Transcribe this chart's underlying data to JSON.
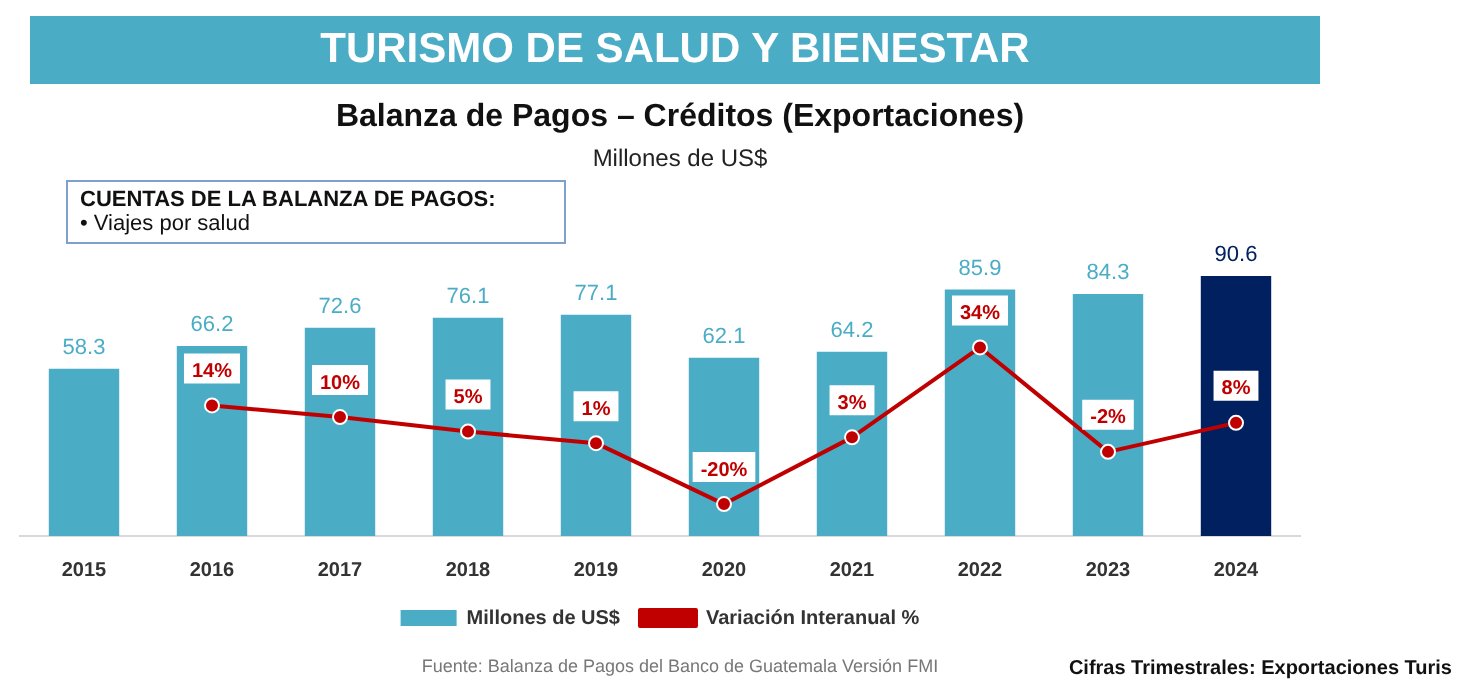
{
  "chart_data": {
    "type": "bar",
    "title": "TURISMO DE SALUD Y BIENESTAR",
    "subtitle": "Balanza de Pagos – Créditos (Exportaciones)",
    "annotations": [
      "Millones de US$",
      "CUENTAS DE LA BALANZA DE PAGOS:",
      "• Viajes por salud",
      "Fuente: Balanza de Pagos del Banco de Guatemala Versión FMI",
      "Cifras Trimestrales: Exportaciones Turis"
    ],
    "categories": [
      "2015",
      "2016",
      "2017",
      "2018",
      "2019",
      "2020",
      "2021",
      "2022",
      "2023",
      "2024"
    ],
    "series": [
      {
        "name": "Millones de US$",
        "colors": [
          "#4bacc6",
          "#4bacc6",
          "#4bacc6",
          "#4bacc6",
          "#4bacc6",
          "#4bacc6",
          "#4bacc6",
          "#4bacc6",
          "#4bacc6",
          "#002060"
        ],
        "values": [
          58.3,
          66.2,
          72.6,
          76.1,
          77.1,
          62.1,
          64.2,
          85.9,
          84.3,
          90.6
        ],
        "value_labels": [
          "58.3",
          "66.2",
          "72.6",
          "76.1",
          "77.1",
          "62.1",
          "64.2",
          "85.9",
          "84.3",
          "90.6"
        ]
      },
      {
        "name": "Variación Interanual %",
        "type": "line",
        "axis": "y2",
        "color": "#c00000",
        "values": [
          null,
          14,
          10,
          5,
          1,
          -20,
          3,
          34,
          -2,
          8
        ],
        "value_labels": [
          null,
          "14%",
          "10%",
          "5%",
          "1%",
          "-20%",
          "3%",
          "34%",
          "-2%",
          "8%"
        ]
      }
    ],
    "ylim": [
      0,
      92
    ],
    "y2lim": [
      -31,
      60
    ],
    "tick_labels": "x",
    "grid": false,
    "legend": "bottom",
    "marker": "circle",
    "line_style": "solid"
  }
}
